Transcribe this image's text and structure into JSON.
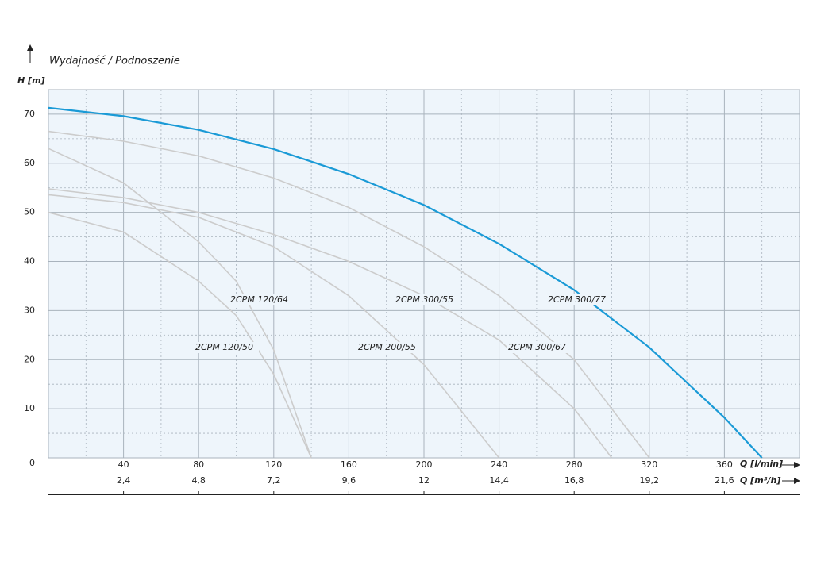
{
  "chart_data": {
    "type": "line",
    "title": "Wydajność / Podnoszenie",
    "y_label": "H [m]",
    "x_label": "Q [l/min]",
    "x2_label": "Q [m³/h]",
    "xlim": [
      0,
      400
    ],
    "xticks": [
      40,
      80,
      120,
      160,
      200,
      240,
      280,
      320,
      360
    ],
    "x2lim": [
      0,
      24
    ],
    "x2ticks": [
      {
        "value": 2.4,
        "label": "2,4"
      },
      {
        "value": 4.8,
        "label": "4,8"
      },
      {
        "value": 7.2,
        "label": "7,2"
      },
      {
        "value": 9.6,
        "label": "9,6"
      },
      12,
      {
        "value": 14.4,
        "label": "14,4"
      },
      {
        "value": 16.8,
        "label": "16,8"
      },
      {
        "value": 19.2,
        "label": "19,2"
      },
      {
        "value": 21.6,
        "label": "21,6"
      }
    ],
    "ylim": [
      0,
      75
    ],
    "yticks": [
      0,
      10,
      20,
      30,
      40,
      50,
      60,
      70
    ],
    "grid": true,
    "series": [
      {
        "name": "2CPM 300/77",
        "color": "#1a9ad6",
        "x": [
          0,
          40,
          80,
          120,
          160,
          200,
          240,
          280,
          320,
          360,
          380
        ],
        "values": [
          71.3,
          69.6,
          66.8,
          62.9,
          57.8,
          51.5,
          43.6,
          34.2,
          22.5,
          8.2,
          0
        ]
      },
      {
        "name": "2CPM 300/67",
        "color": "#cccccc",
        "x": [
          0,
          40,
          80,
          120,
          160,
          200,
          240,
          280,
          320
        ],
        "values": [
          66.5,
          64.5,
          61.5,
          57,
          51,
          43,
          33,
          20,
          0
        ]
      },
      {
        "name": "2CPM 300/55",
        "color": "#cccccc",
        "x": [
          0,
          40,
          80,
          120,
          160,
          200,
          240,
          280,
          300
        ],
        "values": [
          54.8,
          53,
          50,
          45.5,
          40,
          33,
          24,
          10,
          0
        ]
      },
      {
        "name": "2CPM 200/55",
        "color": "#cccccc",
        "x": [
          0,
          40,
          80,
          120,
          160,
          200,
          240
        ],
        "values": [
          53.6,
          52,
          49,
          43,
          33,
          19,
          0
        ]
      },
      {
        "name": "2CPM 120/64",
        "color": "#cccccc",
        "x": [
          0,
          40,
          80,
          100,
          120,
          140
        ],
        "values": [
          63,
          56,
          44,
          36,
          22,
          0
        ]
      },
      {
        "name": "2CPM 120/50",
        "color": "#cccccc",
        "x": [
          0,
          40,
          80,
          100,
          120,
          140
        ],
        "values": [
          50,
          46,
          36,
          29,
          17,
          0
        ]
      }
    ]
  }
}
